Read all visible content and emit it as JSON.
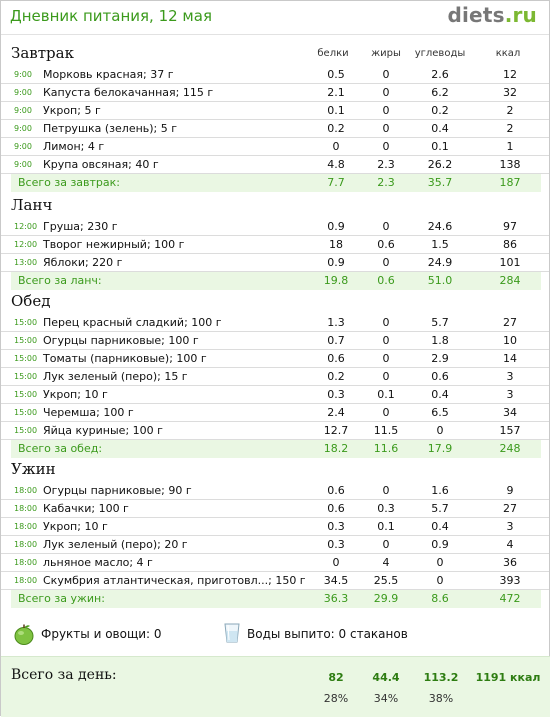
{
  "header": {
    "title": "Дневник питания, 12 мая",
    "brand_main": "diets",
    "brand_suffix": ".ru"
  },
  "columns": {
    "protein": "белки",
    "fat": "жиры",
    "carbs": "углеводы",
    "kcal": "ккал"
  },
  "meals": [
    {
      "name": "Завтрак",
      "items": [
        {
          "time": "9:00",
          "food": "Морковь красная; 37 г",
          "protein": "0.5",
          "fat": "0",
          "carbs": "2.6",
          "kcal": "12"
        },
        {
          "time": "9:00",
          "food": "Капуста белокачанная; 115 г",
          "protein": "2.1",
          "fat": "0",
          "carbs": "6.2",
          "kcal": "32"
        },
        {
          "time": "9:00",
          "food": "Укроп; 5 г",
          "protein": "0.1",
          "fat": "0",
          "carbs": "0.2",
          "kcal": "2"
        },
        {
          "time": "9:00",
          "food": "Петрушка (зелень); 5 г",
          "protein": "0.2",
          "fat": "0",
          "carbs": "0.4",
          "kcal": "2"
        },
        {
          "time": "9:00",
          "food": "Лимон; 4 г",
          "protein": "0",
          "fat": "0",
          "carbs": "0.1",
          "kcal": "1"
        },
        {
          "time": "9:00",
          "food": "Крупа овсяная; 40 г",
          "protein": "4.8",
          "fat": "2.3",
          "carbs": "26.2",
          "kcal": "138"
        }
      ],
      "total": {
        "label": "Всего за завтрак:",
        "protein": "7.7",
        "fat": "2.3",
        "carbs": "35.7",
        "kcal": "187"
      }
    },
    {
      "name": "Ланч",
      "items": [
        {
          "time": "12:00",
          "food": "Груша; 230 г",
          "protein": "0.9",
          "fat": "0",
          "carbs": "24.6",
          "kcal": "97"
        },
        {
          "time": "12:00",
          "food": "Творог нежирный; 100 г",
          "protein": "18",
          "fat": "0.6",
          "carbs": "1.5",
          "kcal": "86"
        },
        {
          "time": "13:00",
          "food": "Яблоки; 220 г",
          "protein": "0.9",
          "fat": "0",
          "carbs": "24.9",
          "kcal": "101"
        }
      ],
      "total": {
        "label": "Всего за ланч:",
        "protein": "19.8",
        "fat": "0.6",
        "carbs": "51.0",
        "kcal": "284"
      }
    },
    {
      "name": "Обед",
      "items": [
        {
          "time": "15:00",
          "food": "Перец красный сладкий; 100 г",
          "protein": "1.3",
          "fat": "0",
          "carbs": "5.7",
          "kcal": "27"
        },
        {
          "time": "15:00",
          "food": "Огурцы парниковые; 100 г",
          "protein": "0.7",
          "fat": "0",
          "carbs": "1.8",
          "kcal": "10"
        },
        {
          "time": "15:00",
          "food": "Томаты (парниковые); 100 г",
          "protein": "0.6",
          "fat": "0",
          "carbs": "2.9",
          "kcal": "14"
        },
        {
          "time": "15:00",
          "food": "Лук зеленый (перо); 15 г",
          "protein": "0.2",
          "fat": "0",
          "carbs": "0.6",
          "kcal": "3"
        },
        {
          "time": "15:00",
          "food": "Укроп; 10 г",
          "protein": "0.3",
          "fat": "0.1",
          "carbs": "0.4",
          "kcal": "3"
        },
        {
          "time": "15:00",
          "food": "Черемша; 100 г",
          "protein": "2.4",
          "fat": "0",
          "carbs": "6.5",
          "kcal": "34"
        },
        {
          "time": "15:00",
          "food": "Яйца куриные; 100 г",
          "protein": "12.7",
          "fat": "11.5",
          "carbs": "0",
          "kcal": "157"
        }
      ],
      "total": {
        "label": "Всего за обед:",
        "protein": "18.2",
        "fat": "11.6",
        "carbs": "17.9",
        "kcal": "248"
      }
    },
    {
      "name": "Ужин",
      "items": [
        {
          "time": "18:00",
          "food": "Огурцы парниковые; 90 г",
          "protein": "0.6",
          "fat": "0",
          "carbs": "1.6",
          "kcal": "9"
        },
        {
          "time": "18:00",
          "food": "Кабачки; 100 г",
          "protein": "0.6",
          "fat": "0.3",
          "carbs": "5.7",
          "kcal": "27"
        },
        {
          "time": "18:00",
          "food": "Укроп; 10 г",
          "protein": "0.3",
          "fat": "0.1",
          "carbs": "0.4",
          "kcal": "3"
        },
        {
          "time": "18:00",
          "food": "Лук зеленый (перо); 20 г",
          "protein": "0.3",
          "fat": "0",
          "carbs": "0.9",
          "kcal": "4"
        },
        {
          "time": "18:00",
          "food": "льняное масло; 4 г",
          "protein": "0",
          "fat": "4",
          "carbs": "0",
          "kcal": "36"
        },
        {
          "time": "18:00",
          "food": "Скумбрия атлантическая, приготовл...; 150 г",
          "protein": "34.5",
          "fat": "25.5",
          "carbs": "0",
          "kcal": "393"
        }
      ],
      "total": {
        "label": "Всего за ужин:",
        "protein": "36.3",
        "fat": "29.9",
        "carbs": "8.6",
        "kcal": "472"
      }
    }
  ],
  "extras": {
    "fruits": "Фрукты и овощи: 0",
    "water": "Воды выпито: 0 стаканов"
  },
  "day_total": {
    "label": "Всего за день:",
    "protein": "82",
    "fat": "44.4",
    "carbs": "113.2",
    "kcal": "1191 ккал",
    "protein_pct": "28%",
    "fat_pct": "34%",
    "carbs_pct": "38%"
  },
  "colors": {
    "accent_green": "#3b9a1c",
    "total_bg": "#eaf7e3"
  }
}
